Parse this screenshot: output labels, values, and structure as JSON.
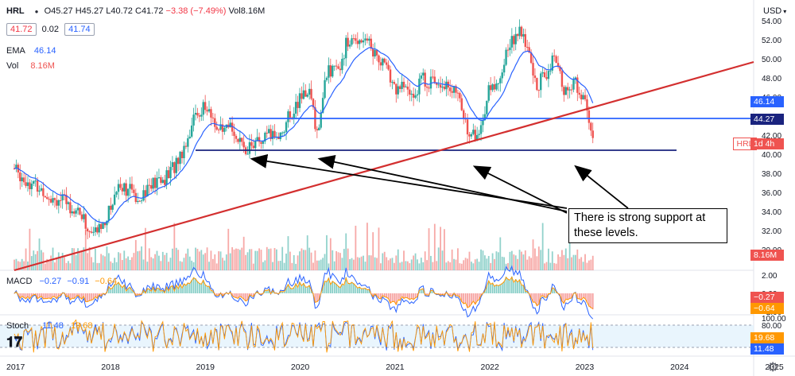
{
  "symbol": "HRL",
  "ohlc": {
    "open": "O45.27",
    "high": "H45.27",
    "low": "L40.72",
    "close": "C41.72",
    "change": "−3.38 (−7.49%)",
    "volume": "Vol8.16M"
  },
  "price_boxes": {
    "bid": "41.72",
    "spread": "0.02",
    "ask": "41.74"
  },
  "ema": {
    "label": "EMA",
    "value": "46.14"
  },
  "vol": {
    "label": "Vol",
    "value": "8.16M"
  },
  "macd": {
    "label": "MACD",
    "v1": "−0.27",
    "v2": "−0.91",
    "v3": "−0.64"
  },
  "stoch": {
    "label": "Stoch",
    "k": "11.48",
    "d": "19.68"
  },
  "currency": "USD",
  "annotation": "There is strong support at these levels.",
  "axis_tags": {
    "ema": "46.14",
    "support": "44.27",
    "ticker": "HRL",
    "interval": "1d 4h",
    "volume": "8.16M",
    "macd_a": "−0.27",
    "macd_b": "−0.64",
    "stoch_a": "19.68",
    "stoch_b": "11.48"
  },
  "colors": {
    "up": "#26a69a",
    "down": "#ef5350",
    "ema": "#2962ff",
    "trendline": "#d32f2f",
    "support": "#1a237e",
    "orange": "#ff9800"
  },
  "chart_data": {
    "type": "candlestick",
    "title": "",
    "x": [
      "2017",
      "2018",
      "2019",
      "2020",
      "2021",
      "2022",
      "2023",
      "2024",
      "2025"
    ],
    "y_ticks": [
      "54.00",
      "52.00",
      "50.00",
      "48.00",
      "46.00",
      "44.00",
      "42.00",
      "40.00",
      "38.00",
      "36.00",
      "34.00",
      "32.00",
      "30.00"
    ],
    "macd_ticks": [
      "2.00",
      "0.00",
      "−2.00"
    ],
    "stoch_ticks": [
      "100.00",
      "80.00",
      "50.00",
      "20.00"
    ],
    "ylim": [
      30,
      55
    ],
    "series": [
      {
        "name": "EMA",
        "value": 46.14
      },
      {
        "name": "Vol",
        "value": "8.16M"
      }
    ],
    "price_path": [
      [
        2017.0,
        38.5
      ],
      [
        2017.1,
        37.5
      ],
      [
        2017.2,
        36.8
      ],
      [
        2017.3,
        36.2
      ],
      [
        2017.4,
        35.5
      ],
      [
        2017.5,
        35.2
      ],
      [
        2017.6,
        34.5
      ],
      [
        2017.7,
        33.8
      ],
      [
        2017.8,
        31.6
      ],
      [
        2017.9,
        32.2
      ],
      [
        2018.0,
        34.0
      ],
      [
        2018.1,
        37.0
      ],
      [
        2018.2,
        36.3
      ],
      [
        2018.3,
        35.5
      ],
      [
        2018.4,
        36.5
      ],
      [
        2018.5,
        37.0
      ],
      [
        2018.6,
        37.5
      ],
      [
        2018.7,
        39.0
      ],
      [
        2018.8,
        41.0
      ],
      [
        2018.9,
        44.0
      ],
      [
        2019.0,
        45.0
      ],
      [
        2019.1,
        43.5
      ],
      [
        2019.2,
        42.0
      ],
      [
        2019.3,
        43.0
      ],
      [
        2019.4,
        40.5
      ],
      [
        2019.5,
        41.0
      ],
      [
        2019.6,
        41.2
      ],
      [
        2019.7,
        42.0
      ],
      [
        2019.8,
        42.0
      ],
      [
        2019.9,
        44.0
      ],
      [
        2020.0,
        45.5
      ],
      [
        2020.1,
        47.0
      ],
      [
        2020.2,
        42.0
      ],
      [
        2020.3,
        49.0
      ],
      [
        2020.4,
        48.5
      ],
      [
        2020.5,
        51.5
      ],
      [
        2020.6,
        52.0
      ],
      [
        2020.7,
        52.5
      ],
      [
        2020.8,
        50.5
      ],
      [
        2020.9,
        49.5
      ],
      [
        2021.0,
        47.0
      ],
      [
        2021.1,
        47.0
      ],
      [
        2021.2,
        46.0
      ],
      [
        2021.3,
        48.0
      ],
      [
        2021.4,
        47.5
      ],
      [
        2021.5,
        47.8
      ],
      [
        2021.6,
        47.0
      ],
      [
        2021.7,
        45.5
      ],
      [
        2021.8,
        42.0
      ],
      [
        2021.9,
        42.0
      ],
      [
        2022.0,
        46.5
      ],
      [
        2022.1,
        47.5
      ],
      [
        2022.2,
        51.0
      ],
      [
        2022.3,
        53.0
      ],
      [
        2022.4,
        51.5
      ],
      [
        2022.5,
        47.0
      ],
      [
        2022.6,
        48.5
      ],
      [
        2022.7,
        50.0
      ],
      [
        2022.8,
        46.5
      ],
      [
        2022.9,
        47.5
      ],
      [
        2023.0,
        46.0
      ],
      [
        2023.1,
        41.7
      ]
    ]
  }
}
